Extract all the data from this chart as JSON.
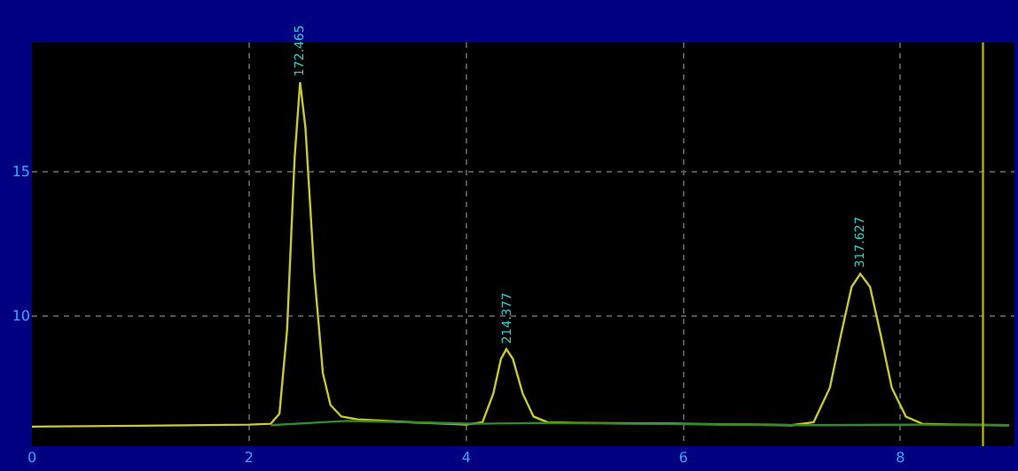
{
  "chart_data": {
    "type": "line",
    "series": [
      {
        "color": "#c8c832",
        "x": [
          0,
          1,
          2,
          2.2,
          2.28,
          2.35,
          2.42,
          2.47,
          2.52,
          2.6,
          2.68,
          2.75,
          2.85,
          3.0,
          3.5,
          4.0,
          4.15,
          4.25,
          4.32,
          4.37,
          4.43,
          4.52,
          4.62,
          4.75,
          5.0,
          6.0,
          7.0,
          7.2,
          7.35,
          7.45,
          7.55,
          7.63,
          7.72,
          7.82,
          7.92,
          8.05,
          8.2,
          8.5,
          9.0
        ],
        "values": [
          6.15,
          6.18,
          6.22,
          6.25,
          6.6,
          9.5,
          15.5,
          18.1,
          16.5,
          11.5,
          8.0,
          6.9,
          6.5,
          6.4,
          6.3,
          6.22,
          6.3,
          7.3,
          8.5,
          8.84,
          8.5,
          7.3,
          6.5,
          6.3,
          6.28,
          6.25,
          6.2,
          6.3,
          7.5,
          9.3,
          11.0,
          11.45,
          11.0,
          9.3,
          7.5,
          6.5,
          6.25,
          6.22,
          6.2
        ]
      },
      {
        "color": "#2e8b2e",
        "x": [
          2.2,
          2.9,
          4.1,
          4.7,
          7.1,
          8.2,
          9.0
        ],
        "values": [
          6.2,
          6.35,
          6.25,
          6.28,
          6.2,
          6.22,
          6.2
        ]
      }
    ],
    "annotations": [
      {
        "text": "172.465",
        "x": 2.47,
        "y": 18.1
      },
      {
        "text": "214.377",
        "x": 4.37,
        "y": 8.84
      },
      {
        "text": "317.627",
        "x": 7.63,
        "y": 11.45
      }
    ],
    "ref_lines": [
      {
        "axis": "x",
        "value": 8.76,
        "color": "#b0b000"
      }
    ],
    "xlim": [
      0,
      9.05
    ],
    "ylim": [
      5.47,
      19.48
    ],
    "xticks": [
      0,
      2,
      4,
      6,
      8
    ],
    "yticks": [
      10,
      15
    ],
    "grid": true,
    "marker": "none",
    "line_style": "solid"
  }
}
